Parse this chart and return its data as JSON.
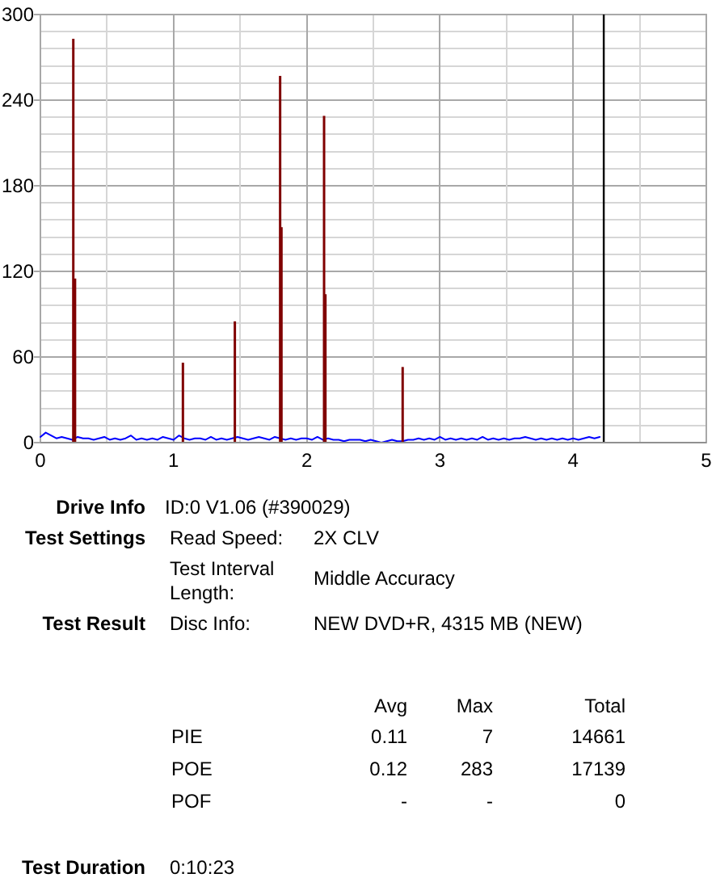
{
  "chart_data": [
    {
      "type": "line",
      "xlim": [
        0,
        5
      ],
      "xticks": [
        0,
        {
          "value": 0.5,
          "label": null
        },
        1,
        {
          "value": 1.5,
          "label": null
        },
        2,
        {
          "value": 2.5,
          "label": null
        },
        3,
        {
          "value": 3.5,
          "label": null
        },
        4,
        {
          "value": 4.5,
          "label": null
        },
        5
      ],
      "ylim": [
        0,
        300
      ],
      "yticks": [
        0,
        {
          "value": 12,
          "label": null
        },
        {
          "value": 24,
          "label": null
        },
        {
          "value": 36,
          "label": null
        },
        {
          "value": 48,
          "label": null
        },
        60,
        {
          "value": 72,
          "label": null
        },
        {
          "value": 84,
          "label": null
        },
        {
          "value": 96,
          "label": null
        },
        {
          "value": 108,
          "label": null
        },
        120,
        {
          "value": 132,
          "label": null
        },
        {
          "value": 144,
          "label": null
        },
        {
          "value": 156,
          "label": null
        },
        {
          "value": 168,
          "label": null
        },
        180,
        {
          "value": 192,
          "label": null
        },
        {
          "value": 204,
          "label": null
        },
        {
          "value": 216,
          "label": null
        },
        {
          "value": 228,
          "label": null
        },
        240,
        {
          "value": 252,
          "label": null
        },
        {
          "value": 264,
          "label": null
        },
        {
          "value": 276,
          "label": null
        },
        {
          "value": 288,
          "label": null
        },
        300
      ],
      "grid": true,
      "series": [
        {
          "color": "#0000ff",
          "x": [
            0,
            0.04,
            0.08,
            0.12,
            0.16,
            0.2,
            0.24,
            0.28,
            0.32,
            0.36,
            0.4,
            0.44,
            0.48,
            0.52,
            0.56,
            0.6,
            0.64,
            0.68,
            0.72,
            0.76,
            0.8,
            0.84,
            0.88,
            0.92,
            0.96,
            1,
            1.04,
            1.08,
            1.12,
            1.16,
            1.2,
            1.24,
            1.28,
            1.32,
            1.36,
            1.4,
            1.44,
            1.48,
            1.52,
            1.56,
            1.6,
            1.64,
            1.68,
            1.72,
            1.76,
            1.8,
            1.84,
            1.88,
            1.92,
            1.96,
            2,
            2.04,
            2.08,
            2.12,
            2.16,
            2.2,
            2.24,
            2.28,
            2.32,
            2.36,
            2.4,
            2.44,
            2.48,
            2.52,
            2.56,
            2.6,
            2.64,
            2.68,
            2.72,
            2.76,
            2.8,
            2.84,
            2.88,
            2.92,
            2.96,
            3,
            3.04,
            3.08,
            3.12,
            3.16,
            3.2,
            3.24,
            3.28,
            3.32,
            3.36,
            3.4,
            3.44,
            3.48,
            3.52,
            3.56,
            3.6,
            3.64,
            3.68,
            3.72,
            3.76,
            3.8,
            3.84,
            3.88,
            3.92,
            3.96,
            4,
            4.04,
            4.08,
            4.12,
            4.16,
            4.2
          ],
          "values": [
            4,
            7,
            5,
            3,
            4,
            3,
            2,
            4,
            3,
            3,
            2,
            3,
            4,
            2,
            3,
            2,
            3,
            5,
            2,
            3,
            2,
            3,
            2,
            4,
            3,
            2,
            5,
            3,
            2,
            3,
            3,
            2,
            4,
            2,
            3,
            2,
            3,
            4,
            3,
            2,
            3,
            4,
            3,
            2,
            4,
            3,
            2,
            3,
            2,
            3,
            3,
            2,
            4,
            2,
            3,
            2,
            2,
            1,
            2,
            2,
            2,
            1,
            2,
            1,
            0,
            1,
            2,
            1,
            1,
            2,
            2,
            3,
            2,
            3,
            2,
            4,
            2,
            3,
            2,
            3,
            2,
            3,
            2,
            4,
            2,
            3,
            2,
            3,
            2,
            3,
            3,
            4,
            3,
            2,
            3,
            2,
            3,
            2,
            3,
            2,
            3,
            2,
            3,
            4,
            3,
            4
          ]
        },
        {
          "type": "bar",
          "color": "#800000",
          "x": [
            0.247,
            0.26,
            1.07,
            1.46,
            1.8,
            1.81,
            2.13,
            2.14,
            2.72
          ],
          "values": [
            283,
            115,
            56,
            85,
            257,
            151,
            229,
            104,
            53
          ]
        }
      ],
      "ref_lines": [
        {
          "axis": "x",
          "value": 4.23,
          "color": "#000000"
        }
      ]
    },
    {
      "type": "other",
      "annotations": [
        "Drive Info",
        "ID:0 V1.06 (#390029)",
        "Test Settings",
        "Read Speed:",
        "2X CLV",
        "Test Interval Length:",
        "Middle Accuracy",
        "Test Result",
        "Disc Info:",
        "NEW DVD+R, 4315 MB (NEW)",
        "Test Duration",
        "0:10:23"
      ],
      "categories": [
        "Avg",
        "Max",
        "Total"
      ],
      "y_categories": [
        "PIE",
        "POE",
        "POF"
      ],
      "cell_labels": [
        [
          "0.11",
          "7",
          "14661"
        ],
        [
          "0.12",
          "283",
          "17139"
        ],
        [
          "-",
          "-",
          "0"
        ]
      ]
    }
  ]
}
